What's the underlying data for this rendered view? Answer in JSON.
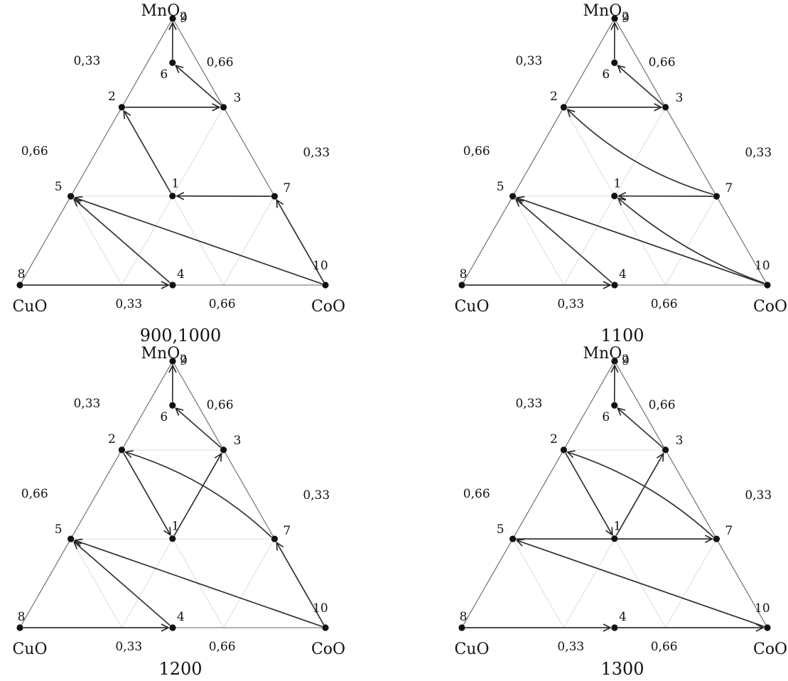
{
  "vertices": {
    "top": "MnO2",
    "left": "CuO",
    "right": "CoO"
  },
  "ticks": {
    "left_upper": "0,33",
    "left_lower": "0,66",
    "right_upper": "0,66",
    "right_lower": "0,33",
    "base_left": "0,33",
    "base_right": "0,66"
  },
  "points": [
    {
      "id": "1",
      "MnO2": 0.333,
      "CuO": 0.333,
      "CoO": 0.333
    },
    {
      "id": "2",
      "MnO2": 0.667,
      "CuO": 0.333,
      "CoO": 0.0
    },
    {
      "id": "3",
      "MnO2": 0.667,
      "CuO": 0.0,
      "CoO": 0.333
    },
    {
      "id": "4",
      "MnO2": 0.0,
      "CuO": 0.5,
      "CoO": 0.5
    },
    {
      "id": "5",
      "MnO2": 0.333,
      "CuO": 0.667,
      "CoO": 0.0
    },
    {
      "id": "6",
      "MnO2": 0.833,
      "CuO": 0.083,
      "CoO": 0.083
    },
    {
      "id": "7",
      "MnO2": 0.333,
      "CuO": 0.0,
      "CoO": 0.667
    },
    {
      "id": "8",
      "MnO2": 0.0,
      "CuO": 1.0,
      "CoO": 0.0
    },
    {
      "id": "9",
      "MnO2": 1.0,
      "CuO": 0.0,
      "CoO": 0.0
    },
    {
      "id": "10",
      "MnO2": 0.0,
      "CuO": 0.0,
      "CoO": 1.0
    }
  ],
  "panels": [
    {
      "caption": "900,1000",
      "transitions": [
        {
          "from": "8",
          "to": "4"
        },
        {
          "from": "4",
          "to": "5"
        },
        {
          "from": "10",
          "to": "5"
        },
        {
          "from": "10",
          "to": "7"
        },
        {
          "from": "7",
          "to": "1"
        },
        {
          "from": "1",
          "to": "2"
        },
        {
          "from": "2",
          "to": "3"
        },
        {
          "from": "3",
          "to": "6"
        },
        {
          "from": "6",
          "to": "9"
        }
      ]
    },
    {
      "caption": "1100",
      "transitions": [
        {
          "from": "8",
          "to": "4"
        },
        {
          "from": "4",
          "to": "5"
        },
        {
          "from": "10",
          "to": "5"
        },
        {
          "from": "10",
          "to": "1"
        },
        {
          "from": "7",
          "to": "1"
        },
        {
          "from": "7",
          "to": "2"
        },
        {
          "from": "2",
          "to": "3"
        },
        {
          "from": "3",
          "to": "6"
        },
        {
          "from": "6",
          "to": "9"
        }
      ]
    },
    {
      "caption": "1200",
      "transitions": [
        {
          "from": "8",
          "to": "4"
        },
        {
          "from": "4",
          "to": "5"
        },
        {
          "from": "10",
          "to": "5"
        },
        {
          "from": "10",
          "to": "7"
        },
        {
          "from": "7",
          "to": "2"
        },
        {
          "from": "2",
          "to": "1"
        },
        {
          "from": "1",
          "to": "3"
        },
        {
          "from": "3",
          "to": "6"
        },
        {
          "from": "6",
          "to": "9"
        }
      ]
    },
    {
      "caption": "1300",
      "transitions": [
        {
          "from": "8",
          "to": "4"
        },
        {
          "from": "4",
          "to": "10"
        },
        {
          "from": "10",
          "to": "5"
        },
        {
          "from": "5",
          "to": "7"
        },
        {
          "from": "7",
          "to": "2"
        },
        {
          "from": "2",
          "to": "1"
        },
        {
          "from": "1",
          "to": "3"
        },
        {
          "from": "3",
          "to": "6"
        },
        {
          "from": "6",
          "to": "9"
        }
      ]
    }
  ]
}
